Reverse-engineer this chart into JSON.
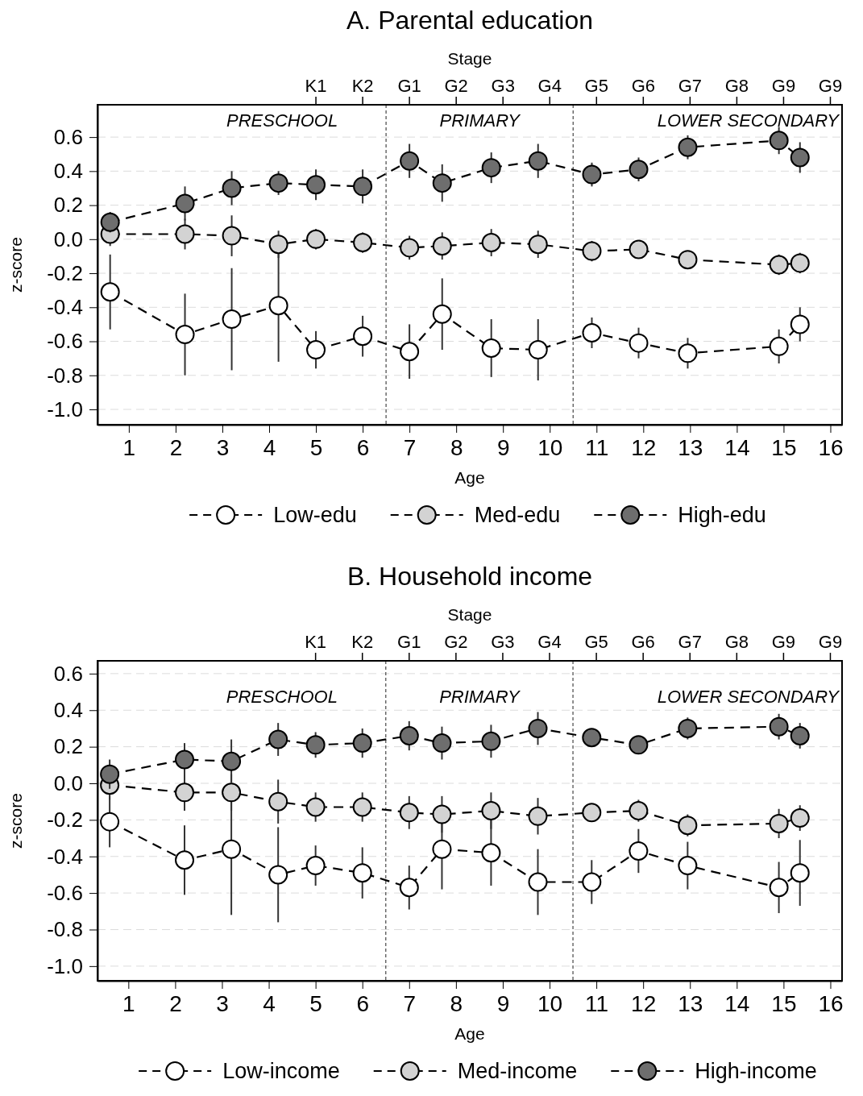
{
  "chart_data": [
    {
      "type": "line",
      "title": "A. Parental education",
      "xlabel": "Age",
      "ylabel": "z-score",
      "x2label": "Stage",
      "x": [
        0.6,
        2.2,
        3.2,
        4.2,
        5,
        6,
        7,
        7.7,
        8.75,
        9.75,
        10.9,
        11.9,
        12.95,
        14.9,
        15.35
      ],
      "series": [
        {
          "name": "Low-edu",
          "color": "#ffffff",
          "values": [
            -0.31,
            -0.56,
            -0.47,
            -0.39,
            -0.65,
            -0.57,
            -0.66,
            -0.44,
            -0.64,
            -0.65,
            -0.55,
            -0.61,
            -0.67,
            -0.63,
            -0.5
          ],
          "errors": [
            0.22,
            0.24,
            0.3,
            0.33,
            0.11,
            0.12,
            0.16,
            0.21,
            0.17,
            0.18,
            0.09,
            0.09,
            0.09,
            0.1,
            0.1
          ]
        },
        {
          "name": "Med-edu",
          "color": "#d3d3d3",
          "values": [
            0.03,
            0.03,
            0.02,
            -0.03,
            0.0,
            -0.02,
            -0.05,
            -0.04,
            -0.02,
            -0.03,
            -0.07,
            -0.06,
            -0.12,
            -0.15,
            -0.14
          ],
          "errors": [
            0.07,
            0.09,
            0.12,
            0.08,
            0.06,
            0.06,
            0.07,
            0.08,
            0.08,
            0.08,
            0.06,
            0.05,
            0.05,
            0.06,
            0.06
          ]
        },
        {
          "name": "High-edu",
          "color": "#6e6e6e",
          "values": [
            0.1,
            0.21,
            0.3,
            0.33,
            0.32,
            0.31,
            0.46,
            0.33,
            0.42,
            0.46,
            0.38,
            0.41,
            0.54,
            0.58,
            0.48
          ],
          "errors": [
            0.06,
            0.1,
            0.1,
            0.07,
            0.09,
            0.1,
            0.1,
            0.11,
            0.09,
            0.1,
            0.07,
            0.07,
            0.07,
            0.08,
            0.09
          ]
        }
      ],
      "xlim": [
        0.33,
        16.25
      ],
      "xticks": [
        1,
        2,
        3,
        4,
        5,
        6,
        7,
        8,
        9,
        10,
        11,
        12,
        13,
        14,
        15,
        16
      ],
      "ylim": [
        -1.09,
        0.79
      ],
      "yticks": [
        {
          "value": -1.0,
          "label": "-1.0"
        },
        {
          "value": -0.8,
          "label": "-0.8"
        },
        {
          "value": -0.6,
          "label": "-0.6"
        },
        {
          "value": -0.4,
          "label": "-0.4"
        },
        {
          "value": -0.2,
          "label": "-0.2"
        },
        {
          "value": 0,
          "label": "0.0"
        },
        {
          "value": 0.2,
          "label": "0.2"
        },
        {
          "value": 0.4,
          "label": "0.4"
        },
        {
          "value": 0.6,
          "label": "0.6"
        }
      ],
      "ref_lines": [
        {
          "axis": "x",
          "value": 6.5,
          "color": "#555555",
          "line_style": "dashed"
        },
        {
          "axis": "x",
          "value": 10.5,
          "color": "#555555",
          "line_style": "dashed"
        }
      ],
      "annotations": [
        "PRESCHOOL",
        "PRIMARY",
        "LOWER SECONDARY",
        "K1",
        "K2",
        "G1",
        "G2",
        "G3",
        "G4",
        "G5",
        "G6",
        "G7",
        "G8",
        "G9",
        "G9"
      ],
      "grid": "y",
      "legend": "bottom",
      "marker": "circle",
      "line_style": "dashed"
    },
    {
      "type": "line",
      "title": "B. Household income",
      "xlabel": "Age",
      "ylabel": "z-score",
      "x2label": "Stage",
      "x": [
        0.6,
        2.2,
        3.2,
        4.2,
        5,
        6,
        7,
        7.7,
        8.75,
        9.75,
        10.9,
        11.9,
        12.95,
        14.9,
        15.35
      ],
      "series": [
        {
          "name": "Low-income",
          "color": "#ffffff",
          "values": [
            -0.21,
            -0.42,
            -0.36,
            -0.5,
            -0.45,
            -0.49,
            -0.57,
            -0.36,
            -0.38,
            -0.54,
            -0.54,
            -0.37,
            -0.45,
            -0.57,
            -0.49
          ],
          "errors": [
            0.14,
            0.19,
            0.36,
            0.26,
            0.11,
            0.14,
            0.12,
            0.22,
            0.18,
            0.18,
            0.12,
            0.12,
            0.13,
            0.14,
            0.18
          ]
        },
        {
          "name": "Med-income",
          "color": "#d3d3d3",
          "values": [
            -0.01,
            -0.05,
            -0.05,
            -0.1,
            -0.13,
            -0.13,
            -0.16,
            -0.17,
            -0.15,
            -0.18,
            -0.16,
            -0.15,
            -0.23,
            -0.22,
            -0.19
          ],
          "errors": [
            0.08,
            0.1,
            0.1,
            0.12,
            0.08,
            0.08,
            0.09,
            0.1,
            0.1,
            0.1,
            0.05,
            0.06,
            0.06,
            0.08,
            0.07
          ]
        },
        {
          "name": "High-income",
          "color": "#6e6e6e",
          "values": [
            0.05,
            0.13,
            0.12,
            0.24,
            0.21,
            0.22,
            0.26,
            0.22,
            0.23,
            0.3,
            0.25,
            0.21,
            0.3,
            0.31,
            0.26
          ],
          "errors": [
            0.08,
            0.09,
            0.12,
            0.09,
            0.07,
            0.08,
            0.08,
            0.09,
            0.09,
            0.09,
            0.05,
            0.05,
            0.06,
            0.07,
            0.07
          ]
        }
      ],
      "xlim": [
        0.34,
        16.25
      ],
      "xticks": [
        1,
        2,
        3,
        4,
        5,
        6,
        7,
        8,
        9,
        10,
        11,
        12,
        13,
        14,
        15,
        16
      ],
      "ylim": [
        -1.08,
        0.67
      ],
      "yticks": [
        {
          "value": -1.0,
          "label": "-1.0"
        },
        {
          "value": -0.8,
          "label": "-0.8"
        },
        {
          "value": -0.6,
          "label": "-0.6"
        },
        {
          "value": -0.4,
          "label": "-0.4"
        },
        {
          "value": -0.2,
          "label": "-0.2"
        },
        {
          "value": 0,
          "label": "0.0"
        },
        {
          "value": 0.2,
          "label": "0.2"
        },
        {
          "value": 0.4,
          "label": "0.4"
        },
        {
          "value": 0.6,
          "label": "0.6"
        }
      ],
      "ref_lines": [
        {
          "axis": "x",
          "value": 6.5,
          "color": "#555555",
          "line_style": "dashed"
        },
        {
          "axis": "x",
          "value": 10.5,
          "color": "#555555",
          "line_style": "dashed"
        }
      ],
      "annotations": [
        "PRESCHOOL",
        "PRIMARY",
        "LOWER SECONDARY",
        "K1",
        "K2",
        "G1",
        "G2",
        "G3",
        "G4",
        "G5",
        "G6",
        "G7",
        "G8",
        "G9",
        "G9"
      ],
      "grid": "y",
      "legend": "bottom",
      "marker": "circle",
      "line_style": "dashed"
    }
  ]
}
